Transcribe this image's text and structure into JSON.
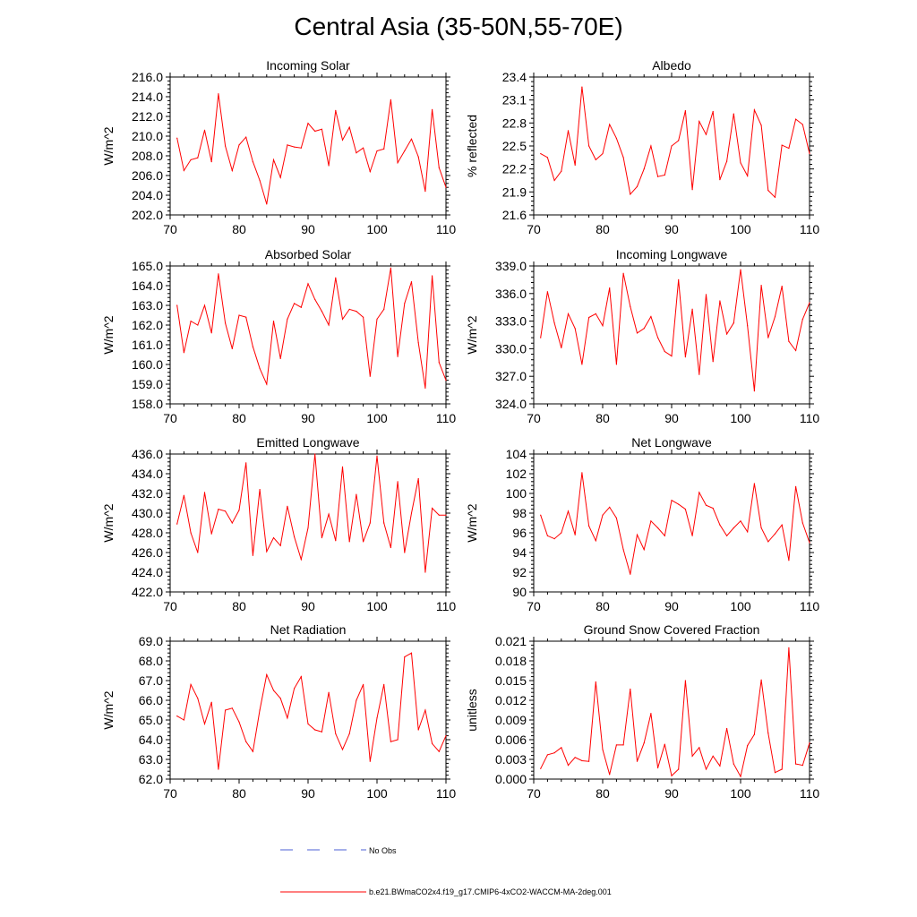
{
  "title": "Central Asia (35-50N,55-70E)",
  "colors": {
    "model": "#ff0000",
    "obs": "#4b5fd6",
    "axis": "#000000"
  },
  "legend": [
    {
      "label": "No Obs",
      "style": "dashed",
      "color": "#4b5fd6"
    },
    {
      "label": "b.e21.BWmaCO2x4.f19_g17.CMIP6-4xCO2-WACCM-MA-2deg.001",
      "style": "solid",
      "color": "#ff0000"
    }
  ],
  "chart_data": [
    {
      "type": "line",
      "title": "Incoming Solar",
      "ylabel": "W/m^2",
      "xlim": [
        70,
        110
      ],
      "xticks": [
        "70",
        "80",
        "90",
        "100",
        "110"
      ],
      "ylim": [
        202,
        216
      ],
      "yticks": [
        "202.0",
        "204.0",
        "206.0",
        "208.0",
        "210.0",
        "212.0",
        "214.0",
        "216.0"
      ],
      "x": [
        71,
        72,
        73,
        74,
        75,
        76,
        77,
        78,
        79,
        80,
        81,
        82,
        83,
        84,
        85,
        86,
        87,
        88,
        89,
        90,
        91,
        92,
        93,
        94,
        95,
        96,
        97,
        98,
        99,
        100,
        101,
        102,
        103,
        104,
        105,
        106,
        107,
        108,
        109,
        110
      ],
      "series": [
        {
          "name": "b.e21.BWmaCO2x4.f19_g17.CMIP6-4xCO2-WACCM-MA-2deg.001",
          "values": [
            209.8,
            206.5,
            207.6,
            207.8,
            210.6,
            207.4,
            214.3,
            209.0,
            206.5,
            209.1,
            209.9,
            207.4,
            205.5,
            203.1,
            207.6,
            205.8,
            209.1,
            208.9,
            208.8,
            211.3,
            210.5,
            210.7,
            207.0,
            212.6,
            209.6,
            210.9,
            208.3,
            208.8,
            206.4,
            208.5,
            208.7,
            213.7,
            207.3,
            208.5,
            209.7,
            207.9,
            204.4,
            212.7,
            206.8,
            204.8
          ]
        }
      ]
    },
    {
      "type": "line",
      "title": "Albedo",
      "ylabel": "% reflected",
      "xlim": [
        70,
        110
      ],
      "xticks": [
        "70",
        "80",
        "90",
        "100",
        "110"
      ],
      "ylim": [
        21.6,
        23.4
      ],
      "yticks": [
        "21.6",
        "21.9",
        "22.2",
        "22.5",
        "22.8",
        "23.1",
        "23.4"
      ],
      "x": [
        71,
        72,
        73,
        74,
        75,
        76,
        77,
        78,
        79,
        80,
        81,
        82,
        83,
        84,
        85,
        86,
        87,
        88,
        89,
        90,
        91,
        92,
        93,
        94,
        95,
        96,
        97,
        98,
        99,
        100,
        101,
        102,
        103,
        104,
        105,
        106,
        107,
        108,
        109,
        110
      ],
      "series": [
        {
          "name": "b.e21.BWmaCO2x4.f19_g17.CMIP6-4xCO2-WACCM-MA-2deg.001",
          "values": [
            22.4,
            22.35,
            22.05,
            22.17,
            22.7,
            22.25,
            23.27,
            22.5,
            22.32,
            22.4,
            22.78,
            22.6,
            22.35,
            21.87,
            21.97,
            22.2,
            22.5,
            22.1,
            22.12,
            22.5,
            22.57,
            22.96,
            21.93,
            22.82,
            22.65,
            22.95,
            22.06,
            22.3,
            22.92,
            22.28,
            22.11,
            22.97,
            22.77,
            21.92,
            21.83,
            22.51,
            22.47,
            22.85,
            22.78,
            22.4
          ]
        }
      ]
    },
    {
      "type": "line",
      "title": "Absorbed Solar",
      "ylabel": "W/m^2",
      "xlim": [
        70,
        110
      ],
      "xticks": [
        "70",
        "80",
        "90",
        "100",
        "110"
      ],
      "ylim": [
        158,
        165
      ],
      "yticks": [
        "158.0",
        "159.0",
        "160.0",
        "161.0",
        "162.0",
        "163.0",
        "164.0",
        "165.0"
      ],
      "x": [
        71,
        72,
        73,
        74,
        75,
        76,
        77,
        78,
        79,
        80,
        81,
        82,
        83,
        84,
        85,
        86,
        87,
        88,
        89,
        90,
        91,
        92,
        93,
        94,
        95,
        96,
        97,
        98,
        99,
        100,
        101,
        102,
        103,
        104,
        105,
        106,
        107,
        108,
        109,
        110
      ],
      "series": [
        {
          "name": "b.e21.BWmaCO2x4.f19_g17.CMIP6-4xCO2-WACCM-MA-2deg.001",
          "values": [
            163.0,
            160.6,
            162.2,
            162.0,
            163.0,
            161.6,
            164.6,
            162.1,
            160.8,
            162.5,
            162.4,
            160.9,
            159.8,
            159.0,
            162.2,
            160.3,
            162.3,
            163.1,
            162.9,
            164.1,
            163.3,
            162.7,
            162.0,
            164.4,
            162.3,
            162.8,
            162.7,
            162.4,
            159.4,
            162.3,
            162.8,
            164.9,
            160.4,
            163.1,
            164.2,
            161.1,
            158.8,
            164.5,
            160.1,
            159.2
          ]
        }
      ]
    },
    {
      "type": "line",
      "title": "Incoming Longwave",
      "ylabel": "W/m^2",
      "xlim": [
        70,
        110
      ],
      "xticks": [
        "70",
        "80",
        "90",
        "100",
        "110"
      ],
      "ylim": [
        324,
        339
      ],
      "yticks": [
        "324.0",
        "327.0",
        "330.0",
        "333.0",
        "336.0",
        "339.0"
      ],
      "x": [
        71,
        72,
        73,
        74,
        75,
        76,
        77,
        78,
        79,
        80,
        81,
        82,
        83,
        84,
        85,
        86,
        87,
        88,
        89,
        90,
        91,
        92,
        93,
        94,
        95,
        96,
        97,
        98,
        99,
        100,
        101,
        102,
        103,
        104,
        105,
        106,
        107,
        108,
        109,
        110
      ],
      "series": [
        {
          "name": "b.e21.BWmaCO2x4.f19_g17.CMIP6-4xCO2-WACCM-MA-2deg.001",
          "values": [
            331.2,
            336.2,
            332.8,
            330.1,
            333.8,
            332.2,
            328.3,
            333.4,
            333.8,
            332.5,
            336.6,
            328.3,
            338.2,
            334.6,
            331.7,
            332.2,
            333.5,
            331.2,
            329.7,
            329.2,
            337.5,
            329.1,
            334.3,
            327.2,
            335.9,
            328.6,
            335.2,
            331.6,
            332.8,
            338.6,
            332.5,
            325.4,
            336.9,
            331.2,
            333.5,
            336.8,
            330.8,
            329.8,
            333.2,
            335.0
          ]
        }
      ]
    },
    {
      "type": "line",
      "title": "Emitted Longwave",
      "ylabel": "W/m^2",
      "xlim": [
        70,
        110
      ],
      "xticks": [
        "70",
        "80",
        "90",
        "100",
        "110"
      ],
      "ylim": [
        422,
        436
      ],
      "yticks": [
        "422.0",
        "424.0",
        "426.0",
        "428.0",
        "430.0",
        "432.0",
        "434.0",
        "436.0"
      ],
      "x": [
        71,
        72,
        73,
        74,
        75,
        76,
        77,
        78,
        79,
        80,
        81,
        82,
        83,
        84,
        85,
        86,
        87,
        88,
        89,
        90,
        91,
        92,
        93,
        94,
        95,
        96,
        97,
        98,
        99,
        100,
        101,
        102,
        103,
        104,
        105,
        106,
        107,
        108,
        109,
        110
      ],
      "series": [
        {
          "name": "b.e21.BWmaCO2x4.f19_g17.CMIP6-4xCO2-WACCM-MA-2deg.001",
          "values": [
            428.9,
            431.8,
            428.0,
            426.0,
            432.1,
            427.9,
            430.4,
            430.2,
            429.0,
            430.3,
            435.1,
            425.7,
            432.4,
            426.1,
            427.5,
            426.7,
            430.7,
            427.6,
            425.3,
            428.5,
            436.0,
            427.5,
            429.9,
            427.2,
            434.7,
            427.1,
            431.9,
            427.1,
            429.0,
            435.8,
            429.0,
            426.5,
            433.2,
            426.0,
            430.0,
            433.5,
            424.0,
            430.5,
            429.8,
            429.8
          ]
        }
      ]
    },
    {
      "type": "line",
      "title": "Net Longwave",
      "ylabel": "W/m^2",
      "xlim": [
        70,
        110
      ],
      "xticks": [
        "70",
        "80",
        "90",
        "100",
        "110"
      ],
      "ylim": [
        90,
        104
      ],
      "yticks": [
        "90",
        "92",
        "94",
        "96",
        "98",
        "100",
        "102",
        "104"
      ],
      "x": [
        71,
        72,
        73,
        74,
        75,
        76,
        77,
        78,
        79,
        80,
        81,
        82,
        83,
        84,
        85,
        86,
        87,
        88,
        89,
        90,
        91,
        92,
        93,
        94,
        95,
        96,
        97,
        98,
        99,
        100,
        101,
        102,
        103,
        104,
        105,
        106,
        107,
        108,
        109,
        110
      ],
      "series": [
        {
          "name": "b.e21.BWmaCO2x4.f19_g17.CMIP6-4xCO2-WACCM-MA-2deg.001",
          "values": [
            97.8,
            95.7,
            95.4,
            96.0,
            98.2,
            95.8,
            102.1,
            96.7,
            95.2,
            97.8,
            98.6,
            97.5,
            94.3,
            91.8,
            95.8,
            94.3,
            97.2,
            96.5,
            95.7,
            99.3,
            98.9,
            98.4,
            95.7,
            100.1,
            98.8,
            98.5,
            96.8,
            95.7,
            96.5,
            97.2,
            96.1,
            101.0,
            96.5,
            95.1,
            95.9,
            96.8,
            93.2,
            100.7,
            97.0,
            95.0
          ]
        }
      ]
    },
    {
      "type": "line",
      "title": "Net Radiation",
      "ylabel": "W/m^2",
      "xlim": [
        70,
        110
      ],
      "xticks": [
        "70",
        "80",
        "90",
        "100",
        "110"
      ],
      "ylim": [
        62,
        69
      ],
      "yticks": [
        "62.0",
        "63.0",
        "64.0",
        "65.0",
        "66.0",
        "67.0",
        "68.0",
        "69.0"
      ],
      "x": [
        71,
        72,
        73,
        74,
        75,
        76,
        77,
        78,
        79,
        80,
        81,
        82,
        83,
        84,
        85,
        86,
        87,
        88,
        89,
        90,
        91,
        92,
        93,
        94,
        95,
        96,
        97,
        98,
        99,
        100,
        101,
        102,
        103,
        104,
        105,
        106,
        107,
        108,
        109,
        110
      ],
      "series": [
        {
          "name": "b.e21.BWmaCO2x4.f19_g17.CMIP6-4xCO2-WACCM-MA-2deg.001",
          "values": [
            65.2,
            65.0,
            66.8,
            66.1,
            64.8,
            65.9,
            62.5,
            65.5,
            65.6,
            64.9,
            63.9,
            63.4,
            65.5,
            67.3,
            66.5,
            66.1,
            65.1,
            66.6,
            67.2,
            64.8,
            64.5,
            64.4,
            66.4,
            64.3,
            63.5,
            64.3,
            66.0,
            66.8,
            62.9,
            65.1,
            66.8,
            63.9,
            64.0,
            68.2,
            68.4,
            64.5,
            65.5,
            63.8,
            63.4,
            64.2
          ]
        }
      ]
    },
    {
      "type": "line",
      "title": "Ground Snow Covered Fraction",
      "ylabel": "unitless",
      "xlim": [
        70,
        110
      ],
      "xticks": [
        "70",
        "80",
        "90",
        "100",
        "110"
      ],
      "ylim": [
        0,
        0.021
      ],
      "yticks": [
        "0.000",
        "0.003",
        "0.006",
        "0.009",
        "0.012",
        "0.015",
        "0.018",
        "0.021"
      ],
      "x": [
        71,
        72,
        73,
        74,
        75,
        76,
        77,
        78,
        79,
        80,
        81,
        82,
        83,
        84,
        85,
        86,
        87,
        88,
        89,
        90,
        91,
        92,
        93,
        94,
        95,
        96,
        97,
        98,
        99,
        100,
        101,
        102,
        103,
        104,
        105,
        106,
        107,
        108,
        109,
        110
      ],
      "series": [
        {
          "name": "b.e21.BWmaCO2x4.f19_g17.CMIP6-4xCO2-WACCM-MA-2deg.001",
          "values": [
            0.0016,
            0.0037,
            0.004,
            0.0048,
            0.0021,
            0.0033,
            0.0028,
            0.0027,
            0.0148,
            0.0045,
            0.0007,
            0.0052,
            0.0052,
            0.0137,
            0.0027,
            0.0055,
            0.01,
            0.0017,
            0.0053,
            0.0005,
            0.0015,
            0.015,
            0.0035,
            0.0048,
            0.0015,
            0.0035,
            0.002,
            0.0077,
            0.0023,
            0.0004,
            0.0051,
            0.0068,
            0.0151,
            0.007,
            0.001,
            0.0015,
            0.02,
            0.0023,
            0.0021,
            0.0055
          ]
        }
      ]
    }
  ]
}
